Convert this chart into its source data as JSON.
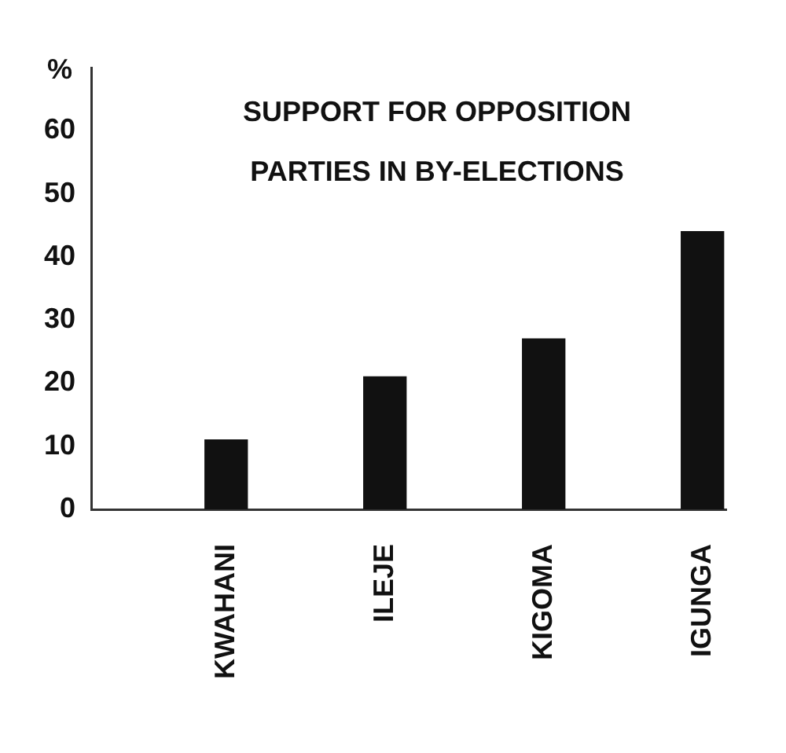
{
  "chart_data": {
    "type": "bar",
    "title": "SUPPORT FOR OPPOSITION PARTIES IN BY-ELECTIONS",
    "ylabel": "%",
    "categories": [
      "KWAHANI",
      "ILEJE",
      "KIGOMA",
      "IGUNGA"
    ],
    "values": [
      11,
      21,
      27,
      44
    ],
    "color": "#111111",
    "ylim": [
      0,
      70
    ],
    "yticks": [
      0,
      10,
      20,
      30,
      40,
      50,
      60
    ]
  }
}
